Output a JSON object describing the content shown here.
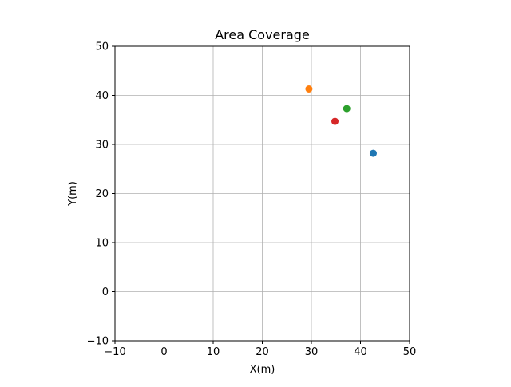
{
  "chart_data": {
    "type": "scatter",
    "title": "Area Coverage",
    "xlabel": "X(m)",
    "ylabel": "Y(m)",
    "xlim": [
      -10,
      50
    ],
    "ylim": [
      -10,
      50
    ],
    "xticks": [
      -10,
      0,
      10,
      20,
      30,
      40,
      50
    ],
    "yticks": [
      -10,
      0,
      10,
      20,
      30,
      40,
      50
    ],
    "grid": true,
    "points": [
      {
        "x": 42.6,
        "y": 28.2,
        "color": "#1f77b4"
      },
      {
        "x": 29.5,
        "y": 41.3,
        "color": "#ff7f0e"
      },
      {
        "x": 37.2,
        "y": 37.3,
        "color": "#2ca02c"
      },
      {
        "x": 34.8,
        "y": 34.7,
        "color": "#d62728"
      }
    ]
  }
}
